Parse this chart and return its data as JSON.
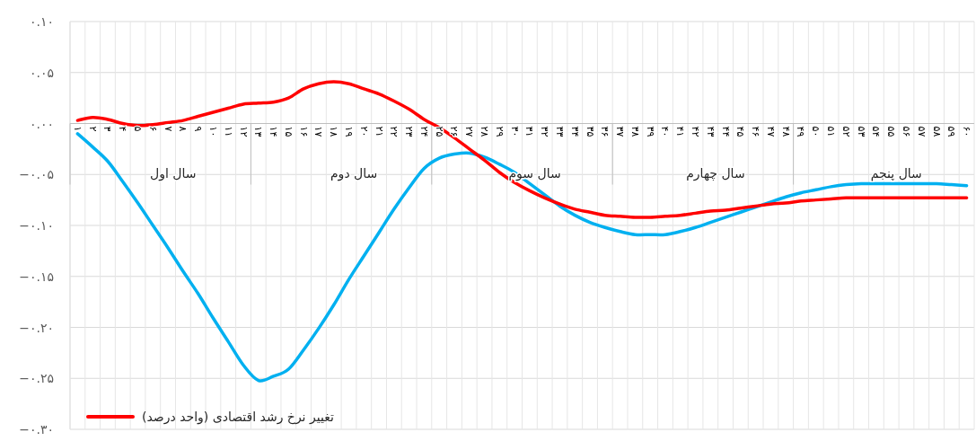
{
  "chart_data": {
    "type": "line",
    "categories": [
      "۱",
      "۲",
      "۳",
      "۴",
      "۵",
      "۶",
      "۷",
      "۸",
      "۹",
      "۱۰",
      "۱۱",
      "۱۲",
      "۱۳",
      "۱۴",
      "۱۵",
      "۱۶",
      "۱۷",
      "۱۸",
      "۱۹",
      "۲۰",
      "۲۱",
      "۲۲",
      "۲۳",
      "۲۴",
      "۲۵",
      "۲۶",
      "۲۷",
      "۲۸",
      "۲۹",
      "۳۰",
      "۳۱",
      "۳۲",
      "۳۳",
      "۳۴",
      "۳۵",
      "۳۶",
      "۳۷",
      "۳۸",
      "۳۹",
      "۴۰",
      "۴۱",
      "۴۲",
      "۴۳",
      "۴۴",
      "۴۵",
      "۴۶",
      "۴۷",
      "۴۸",
      "۴۹",
      "۵۰",
      "۵۱",
      "۵۲",
      "۵۳",
      "۵۴",
      "۵۵",
      "۵۶",
      "۵۷",
      "۵۸",
      "۵۹",
      "۶۰"
    ],
    "annotations": [
      "سال اول",
      "سال دوم",
      "سال سوم",
      "سال چهارم",
      "سال پنجم"
    ],
    "series": [
      {
        "name": "تغییر نرخ رشد اقتصادی (واحد درصد)",
        "color": "#ff0000",
        "values": [
          0.003,
          0.006,
          0.004,
          0.0,
          -0.002,
          -0.001,
          0.001,
          0.003,
          0.007,
          0.011,
          0.015,
          0.019,
          0.02,
          0.021,
          0.025,
          0.034,
          0.039,
          0.041,
          0.039,
          0.034,
          0.029,
          0.022,
          0.014,
          0.004,
          -0.004,
          -0.014,
          -0.025,
          -0.036,
          -0.048,
          -0.058,
          -0.066,
          -0.073,
          -0.079,
          -0.084,
          -0.087,
          -0.09,
          -0.091,
          -0.092,
          -0.092,
          -0.091,
          -0.09,
          -0.088,
          -0.086,
          -0.085,
          -0.083,
          -0.081,
          -0.079,
          -0.078,
          -0.076,
          -0.075,
          -0.074,
          -0.073,
          -0.073,
          -0.073,
          -0.073,
          -0.073,
          -0.073,
          -0.073,
          -0.073,
          -0.073
        ]
      },
      {
        "color": "#00b0f0",
        "values": [
          -0.01,
          -0.023,
          -0.037,
          -0.057,
          -0.078,
          -0.1,
          -0.122,
          -0.145,
          -0.167,
          -0.191,
          -0.214,
          -0.237,
          -0.252,
          -0.248,
          -0.241,
          -0.222,
          -0.201,
          -0.178,
          -0.153,
          -0.13,
          -0.107,
          -0.084,
          -0.063,
          -0.044,
          -0.034,
          -0.03,
          -0.029,
          -0.033,
          -0.04,
          -0.048,
          -0.059,
          -0.07,
          -0.081,
          -0.09,
          -0.097,
          -0.102,
          -0.106,
          -0.109,
          -0.109,
          -0.109,
          -0.106,
          -0.102,
          -0.097,
          -0.092,
          -0.087,
          -0.082,
          -0.077,
          -0.072,
          -0.068,
          -0.065,
          -0.062,
          -0.06,
          -0.059,
          -0.059,
          -0.059,
          -0.059,
          -0.059,
          -0.059,
          -0.06,
          -0.061
        ]
      }
    ],
    "ylim": [
      -0.3,
      0.1
    ],
    "yticks": [
      {
        "value": 0.1,
        "label": "۰.۱۰"
      },
      {
        "value": 0.05,
        "label": "۰.۰۵"
      },
      {
        "value": 0,
        "label": "۰.۰۰"
      },
      {
        "value": -0.05,
        "label": "−۰.۰۵"
      },
      {
        "value": -0.1,
        "label": "−۰.۱۰"
      },
      {
        "value": -0.15,
        "label": "−۰.۱۵"
      },
      {
        "value": -0.2,
        "label": "−۰.۲۰"
      },
      {
        "value": -0.25,
        "label": "−۰.۲۵"
      },
      {
        "value": -0.3,
        "label": "−۰.۳۰"
      }
    ],
    "grid": true,
    "legend": "bottom left",
    "marker": "none",
    "line_style": "solid"
  }
}
